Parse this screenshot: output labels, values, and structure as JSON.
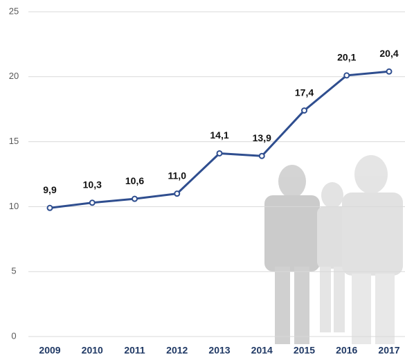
{
  "chart_data": {
    "type": "line",
    "categories": [
      "2009",
      "2010",
      "2011",
      "2012",
      "2013",
      "2014",
      "2015",
      "2016",
      "2017"
    ],
    "values": [
      9.9,
      10.3,
      10.6,
      11.0,
      14.1,
      13.9,
      17.4,
      20.1,
      20.4
    ],
    "value_labels": [
      "9,9",
      "10,3",
      "10,6",
      "11,0",
      "14,1",
      "13,9",
      "17,4",
      "20,1",
      "20,4"
    ],
    "color": "#2f4e8f",
    "ylim": [
      0,
      25
    ],
    "yticks": [
      0,
      5,
      10,
      15,
      20,
      25
    ],
    "grid": true
  }
}
